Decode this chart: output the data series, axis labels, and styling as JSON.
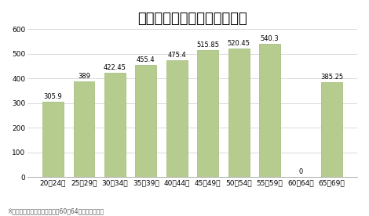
{
  "title": "年齢別プログラマー平均年収",
  "categories": [
    "20〜24歳",
    "25〜29歳",
    "30〜34歳",
    "35〜39歳",
    "40〜44歳",
    "45〜49歳",
    "50〜54歳",
    "55〜59歳",
    "60〜64歳",
    "65〜69歳"
  ],
  "values": [
    305.9,
    389,
    422.45,
    455.4,
    475.4,
    515.85,
    520.45,
    540.3,
    0,
    385.25
  ],
  "bar_color": "#b5cc8e",
  "bar_edge_color": "#9ebb78",
  "ylim": [
    0,
    600
  ],
  "yticks": [
    0,
    100,
    200,
    300,
    400,
    500,
    600
  ],
  "value_labels": [
    "305.9",
    "389",
    "422.45",
    "455.4",
    "475.4",
    "515.85",
    "520.45",
    "540.3",
    "0",
    "385.25"
  ],
  "footnote": "※女性の調査データ不明により60〜64歳のグラフ欠損",
  "background_color": "#ffffff",
  "grid_color": "#cccccc",
  "title_fontsize": 13,
  "label_fontsize": 6.5,
  "value_fontsize": 6,
  "footnote_fontsize": 5.5
}
